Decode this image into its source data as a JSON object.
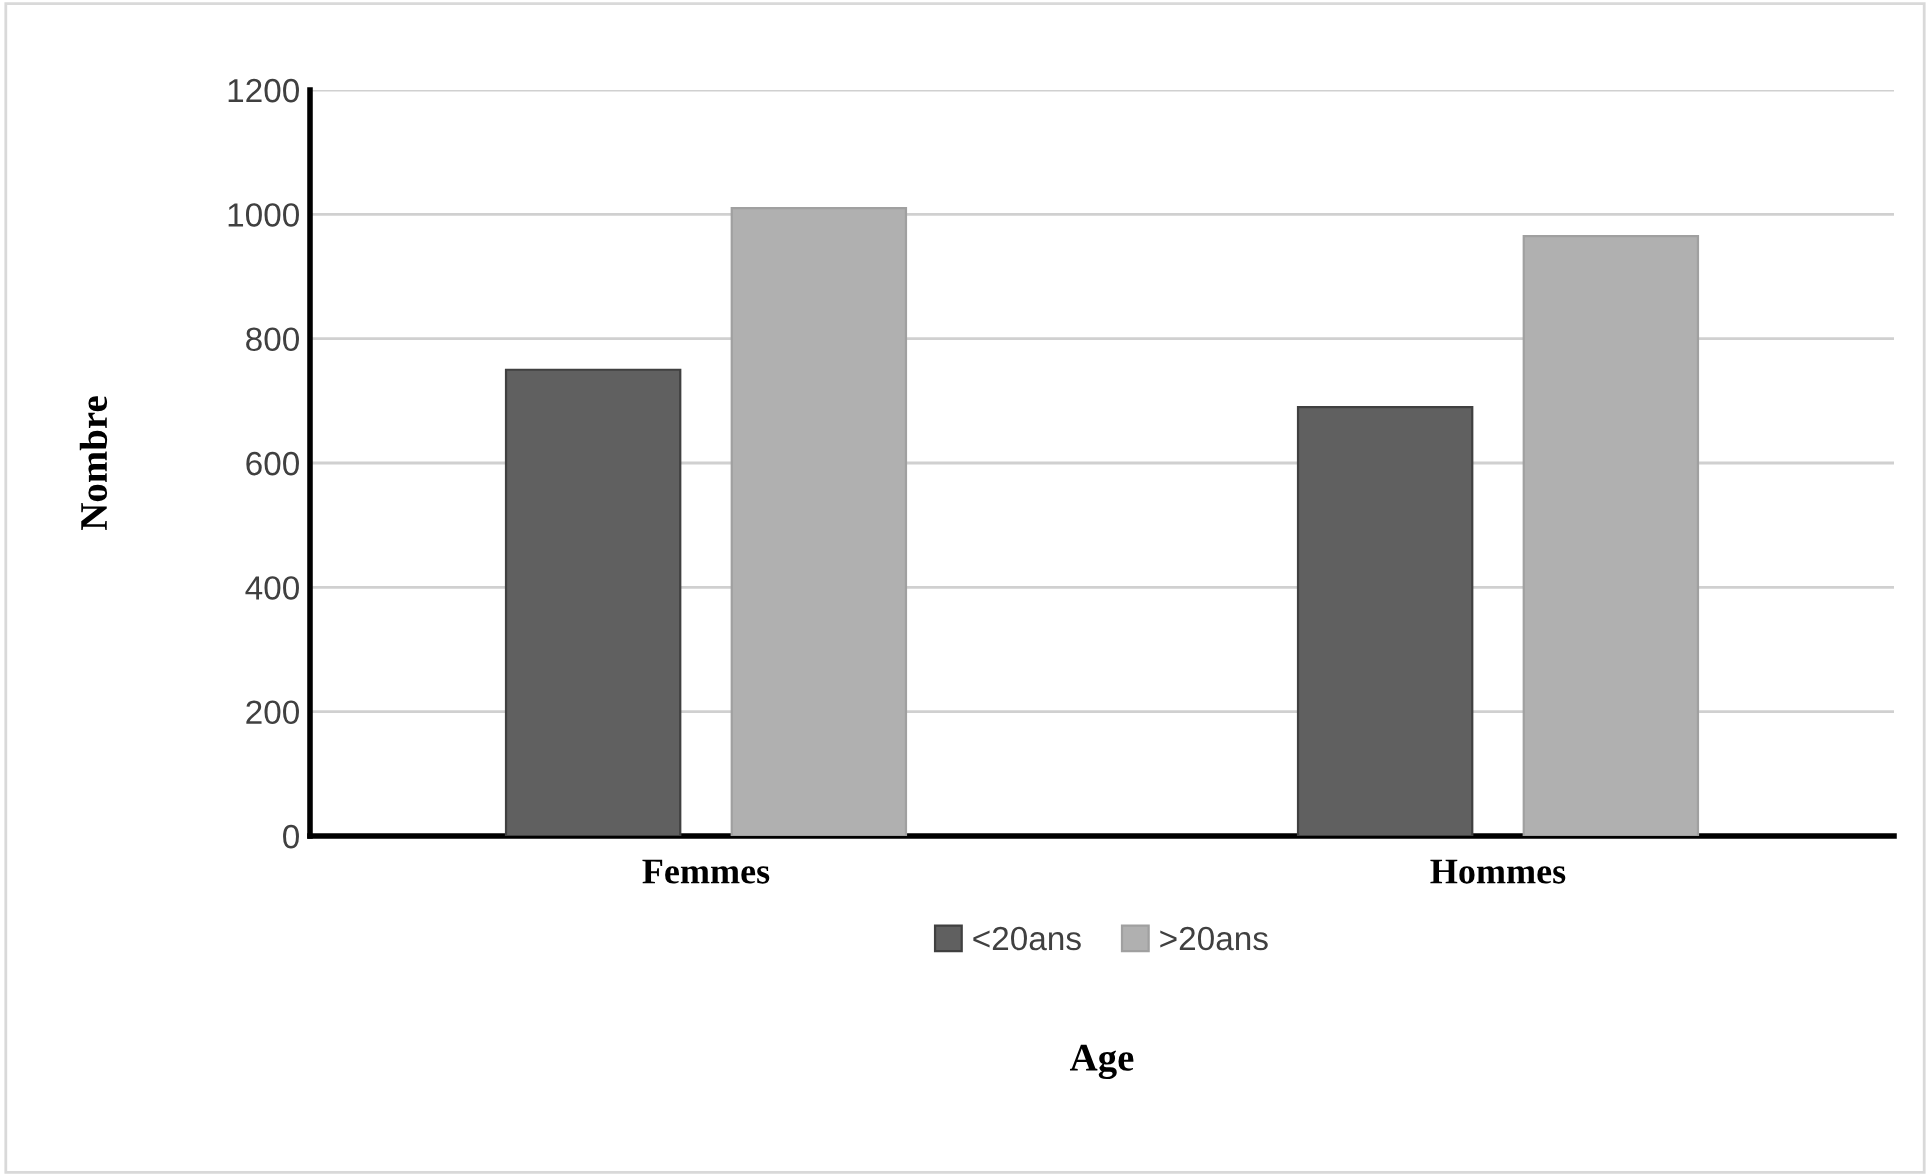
{
  "chart_data": {
    "type": "bar",
    "xlabel": "Age",
    "ylabel": "Nombre",
    "categories": [
      "Femmes",
      "Hommes"
    ],
    "series": [
      {
        "name": "<20ans",
        "color": "#606060",
        "values": [
          750,
          690
        ]
      },
      {
        "name": ">20ans",
        "color": "#b0b0b0",
        "values": [
          1010,
          965
        ]
      }
    ],
    "ylim": [
      0,
      1200
    ],
    "yticks": [
      0,
      200,
      400,
      600,
      800,
      1000,
      1200
    ],
    "grid": "y",
    "legend": "bottom"
  }
}
